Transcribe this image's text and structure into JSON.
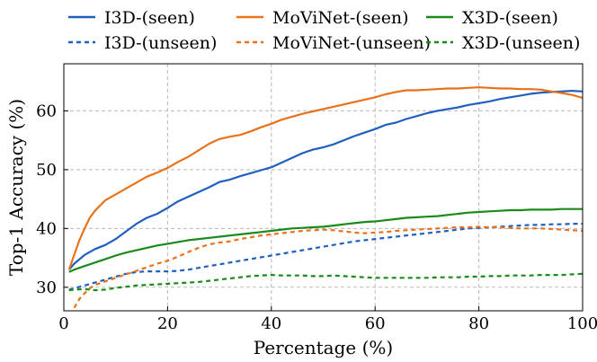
{
  "chart_data": {
    "type": "line",
    "xlabel": "Percentage (%)",
    "ylabel": "Top-1 Accuracy (%)",
    "xlim": [
      0,
      100
    ],
    "ylim": [
      26,
      68
    ],
    "xticks": [
      0,
      20,
      40,
      60,
      80,
      100
    ],
    "yticks": [
      30,
      40,
      50,
      60
    ],
    "grid": true,
    "legend_position": "top",
    "series": [
      {
        "name": "I3D-(seen)",
        "color": "#1f5fbf",
        "style": "solid",
        "x": [
          1,
          2,
          4,
          6,
          8,
          10,
          12,
          14,
          16,
          18,
          20,
          22,
          24,
          26,
          28,
          30,
          32,
          34,
          36,
          38,
          40,
          42,
          44,
          46,
          48,
          50,
          52,
          54,
          56,
          58,
          60,
          62,
          64,
          66,
          68,
          70,
          72,
          74,
          76,
          78,
          80,
          82,
          84,
          86,
          88,
          90,
          92,
          94,
          96,
          98,
          100
        ],
        "values": [
          33,
          34,
          35.5,
          36.5,
          37.2,
          38.2,
          39.5,
          40.8,
          41.8,
          42.5,
          43.5,
          44.6,
          45.4,
          46.2,
          47,
          47.9,
          48.3,
          48.9,
          49.4,
          49.9,
          50.4,
          51.2,
          52,
          52.8,
          53.4,
          53.8,
          54.3,
          55,
          55.7,
          56.3,
          56.9,
          57.6,
          58,
          58.6,
          59.1,
          59.6,
          60,
          60.3,
          60.6,
          61,
          61.3,
          61.6,
          62,
          62.3,
          62.6,
          62.9,
          63.1,
          63.2,
          63.3,
          63.4,
          63.3
        ]
      },
      {
        "name": "MoViNet-(seen)",
        "color": "#e8711a",
        "style": "solid",
        "x": [
          1,
          2,
          3,
          4,
          5,
          6,
          8,
          10,
          12,
          14,
          16,
          18,
          20,
          22,
          24,
          26,
          28,
          30,
          32,
          34,
          36,
          38,
          40,
          42,
          44,
          46,
          48,
          50,
          52,
          54,
          56,
          58,
          60,
          62,
          64,
          66,
          68,
          70,
          72,
          74,
          76,
          78,
          80,
          82,
          84,
          86,
          88,
          90,
          92,
          94,
          96,
          98,
          100
        ],
        "values": [
          33,
          35.5,
          38,
          40,
          41.8,
          43,
          44.8,
          45.8,
          46.8,
          47.8,
          48.8,
          49.5,
          50.3,
          51.3,
          52.2,
          53.3,
          54.4,
          55.2,
          55.6,
          55.9,
          56.5,
          57.2,
          57.8,
          58.5,
          59,
          59.5,
          59.9,
          60.3,
          60.7,
          61.1,
          61.5,
          61.9,
          62.3,
          62.8,
          63.2,
          63.5,
          63.5,
          63.6,
          63.7,
          63.8,
          63.8,
          63.9,
          64,
          63.9,
          63.8,
          63.8,
          63.7,
          63.7,
          63.6,
          63.3,
          63,
          62.7,
          62.2
        ]
      },
      {
        "name": "X3D-(seen)",
        "color": "#1a8a1a",
        "style": "solid",
        "x": [
          1,
          2,
          4,
          6,
          8,
          10,
          12,
          14,
          16,
          18,
          20,
          22,
          24,
          26,
          28,
          30,
          32,
          34,
          36,
          38,
          40,
          42,
          44,
          46,
          48,
          50,
          52,
          54,
          56,
          58,
          60,
          62,
          64,
          66,
          68,
          70,
          72,
          74,
          76,
          78,
          80,
          82,
          84,
          86,
          88,
          90,
          92,
          94,
          96,
          98,
          100
        ],
        "values": [
          32.6,
          33,
          33.6,
          34.2,
          34.8,
          35.4,
          35.9,
          36.3,
          36.7,
          37.1,
          37.4,
          37.7,
          38,
          38.2,
          38.4,
          38.6,
          38.8,
          39,
          39.2,
          39.4,
          39.6,
          39.8,
          40,
          40.1,
          40.2,
          40.3,
          40.5,
          40.7,
          40.9,
          41.1,
          41.2,
          41.4,
          41.6,
          41.8,
          41.9,
          42,
          42.1,
          42.3,
          42.5,
          42.7,
          42.8,
          42.9,
          43,
          43.1,
          43.1,
          43.2,
          43.2,
          43.2,
          43.3,
          43.3,
          43.3
        ]
      },
      {
        "name": "I3D-(unseen)",
        "color": "#1f5fbf",
        "style": "dashed",
        "x": [
          1,
          2,
          4,
          6,
          8,
          10,
          12,
          14,
          16,
          18,
          20,
          22,
          24,
          26,
          28,
          30,
          32,
          34,
          36,
          38,
          40,
          42,
          44,
          46,
          48,
          50,
          52,
          54,
          56,
          58,
          60,
          62,
          64,
          66,
          68,
          70,
          72,
          74,
          76,
          78,
          80,
          82,
          84,
          86,
          88,
          90,
          92,
          94,
          96,
          98,
          100
        ],
        "values": [
          29.6,
          29.8,
          30.3,
          30.8,
          31.3,
          31.8,
          32.3,
          32.6,
          32.7,
          32.7,
          32.7,
          32.8,
          33,
          33.3,
          33.6,
          33.9,
          34.2,
          34.5,
          34.8,
          35.1,
          35.4,
          35.7,
          36,
          36.3,
          36.6,
          36.9,
          37.2,
          37.5,
          37.8,
          38,
          38.2,
          38.4,
          38.6,
          38.8,
          39,
          39.2,
          39.4,
          39.6,
          39.8,
          40,
          40.1,
          40.2,
          40.3,
          40.4,
          40.5,
          40.6,
          40.6,
          40.7,
          40.7,
          40.8,
          40.8
        ]
      },
      {
        "name": "MoViNet-(unseen)",
        "color": "#e8711a",
        "style": "dashed",
        "x": [
          2,
          3,
          4,
          5,
          6,
          8,
          10,
          12,
          14,
          16,
          18,
          20,
          22,
          24,
          26,
          28,
          30,
          32,
          34,
          36,
          38,
          40,
          42,
          44,
          46,
          48,
          50,
          52,
          54,
          56,
          58,
          60,
          62,
          64,
          66,
          68,
          70,
          72,
          74,
          76,
          78,
          80,
          82,
          84,
          86,
          88,
          90,
          92,
          94,
          96,
          98,
          100
        ],
        "values": [
          26.5,
          28,
          29,
          29.8,
          30.4,
          31,
          31.6,
          32.2,
          32.8,
          33.4,
          34,
          34.5,
          35.2,
          36,
          36.7,
          37.3,
          37.6,
          37.8,
          38.2,
          38.5,
          38.8,
          39,
          39.2,
          39.4,
          39.6,
          39.7,
          39.8,
          39.7,
          39.5,
          39.3,
          39.2,
          39.3,
          39.4,
          39.6,
          39.7,
          39.8,
          39.9,
          40,
          40.1,
          40.2,
          40.2,
          40.3,
          40.2,
          40.2,
          40.1,
          40,
          40,
          40,
          39.9,
          39.8,
          39.7,
          39.6
        ]
      },
      {
        "name": "X3D-(unseen)",
        "color": "#1a8a1a",
        "style": "dashed",
        "x": [
          1,
          2,
          4,
          6,
          8,
          10,
          12,
          14,
          16,
          18,
          20,
          22,
          24,
          26,
          28,
          30,
          32,
          34,
          36,
          38,
          40,
          42,
          44,
          46,
          48,
          50,
          52,
          54,
          56,
          58,
          60,
          62,
          64,
          66,
          68,
          70,
          72,
          74,
          76,
          78,
          80,
          82,
          84,
          86,
          88,
          90,
          92,
          94,
          96,
          98,
          100
        ],
        "values": [
          29.5,
          29.6,
          29.7,
          29.5,
          29.6,
          29.9,
          30.1,
          30.3,
          30.4,
          30.5,
          30.6,
          30.7,
          30.8,
          30.9,
          31.1,
          31.3,
          31.5,
          31.7,
          31.9,
          32,
          32.1,
          32,
          32,
          32,
          31.9,
          31.9,
          32,
          31.9,
          31.8,
          31.7,
          31.6,
          31.6,
          31.6,
          31.6,
          31.6,
          31.6,
          31.7,
          31.7,
          31.7,
          31.8,
          31.8,
          31.9,
          31.9,
          32,
          32,
          32,
          32.1,
          32.1,
          32.1,
          32.2,
          32.3
        ]
      }
    ]
  }
}
